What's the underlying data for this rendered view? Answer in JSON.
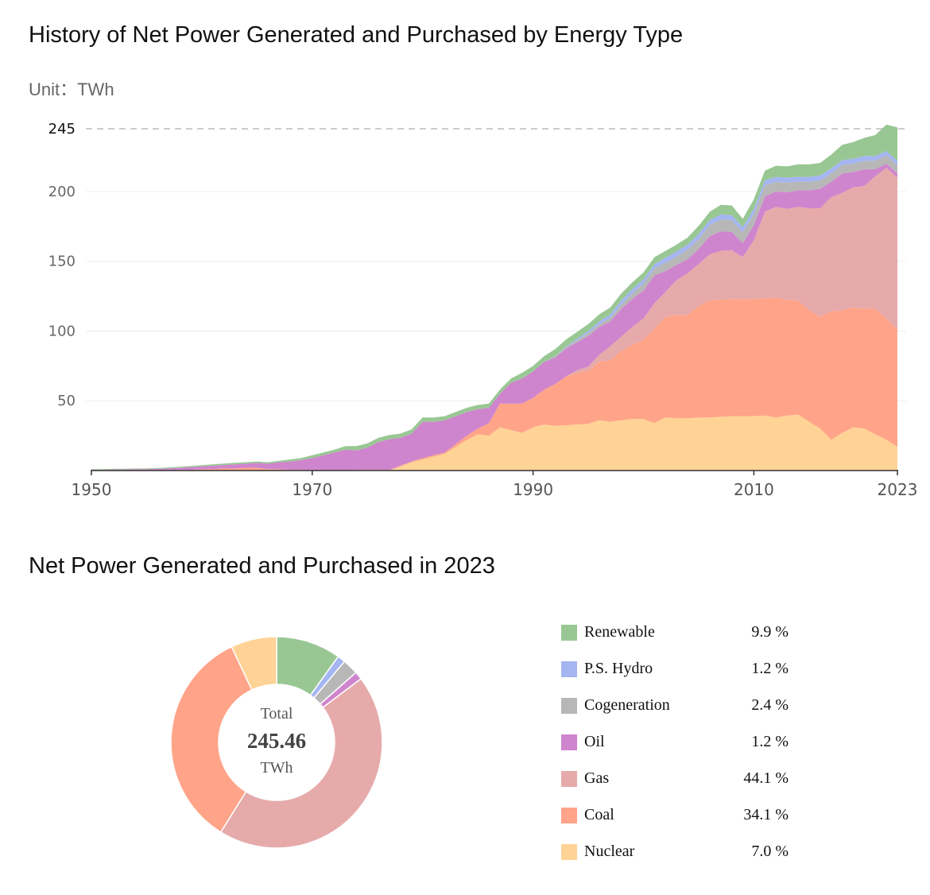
{
  "page": {
    "title": "History of Net Power Generated and Purchased by Energy Type",
    "unit_label": "Unit：TWh",
    "pie_title": "Net Power Generated and Purchased in 2023",
    "total_label": "Total",
    "total_value": "245.46",
    "total_unit": "TWh"
  },
  "chart_data": [
    {
      "type": "area",
      "stacked": true,
      "title": "History of Net Power Generated and Purchased by Energy Type",
      "ylabel": "Unit：TWh",
      "ylim": [
        0,
        245
      ],
      "y_ticks": [
        50,
        100,
        150,
        200,
        245
      ],
      "x_ticks": [
        1950,
        1970,
        1990,
        2010,
        2023
      ],
      "x": [
        1950,
        1951,
        1952,
        1953,
        1954,
        1955,
        1956,
        1957,
        1958,
        1959,
        1960,
        1961,
        1962,
        1963,
        1964,
        1965,
        1966,
        1967,
        1968,
        1969,
        1970,
        1971,
        1972,
        1973,
        1974,
        1975,
        1976,
        1977,
        1978,
        1979,
        1980,
        1981,
        1982,
        1983,
        1984,
        1985,
        1986,
        1987,
        1988,
        1989,
        1990,
        1991,
        1992,
        1993,
        1994,
        1995,
        1996,
        1997,
        1998,
        1999,
        2000,
        2001,
        2002,
        2003,
        2004,
        2005,
        2006,
        2007,
        2008,
        2009,
        2010,
        2011,
        2012,
        2013,
        2014,
        2015,
        2016,
        2017,
        2018,
        2019,
        2020,
        2021,
        2022,
        2023
      ],
      "series": [
        {
          "name": "Nuclear",
          "color": "#ffd395",
          "values": [
            0,
            0,
            0,
            0,
            0,
            0,
            0,
            0,
            0,
            0,
            0,
            0,
            0,
            0,
            0,
            0,
            0,
            0,
            0,
            0,
            0,
            0,
            0,
            0,
            0,
            0,
            0,
            0,
            3,
            6,
            8,
            10,
            12,
            17,
            22,
            26,
            25,
            31,
            29,
            27,
            31,
            33,
            32,
            32.5,
            33,
            33.5,
            36,
            35,
            36,
            37,
            37,
            34,
            38,
            37.5,
            37.5,
            38,
            38,
            38.5,
            39,
            39,
            39,
            39.5,
            38,
            39.5,
            40,
            35,
            30,
            22,
            27,
            31,
            30,
            26,
            22,
            17
          ]
        },
        {
          "name": "Coal",
          "color": "#ffa489",
          "values": [
            0,
            0,
            0,
            0,
            0,
            0,
            0,
            0,
            0.5,
            0.5,
            1,
            1,
            1.5,
            1.5,
            2,
            2,
            1,
            1,
            0.5,
            0.5,
            0,
            0,
            0,
            0,
            0.5,
            0.5,
            0.5,
            0.5,
            0.5,
            0.5,
            1,
            1,
            1,
            2,
            3,
            4,
            9,
            17,
            19,
            21,
            21,
            25,
            30,
            35,
            37,
            38,
            42,
            44,
            50,
            53,
            57,
            68,
            72,
            74,
            74,
            80,
            84,
            84,
            84,
            84,
            84,
            84,
            86,
            83,
            82,
            80,
            80,
            92,
            88,
            86,
            86,
            90,
            87,
            84
          ]
        },
        {
          "name": "Gas",
          "color": "#e6aaab",
          "values": [
            0,
            0,
            0,
            0,
            0,
            0,
            0,
            0,
            0,
            0,
            0,
            0,
            0,
            0,
            0,
            0,
            0,
            0,
            0,
            0,
            0,
            0,
            0,
            0,
            0,
            0,
            0,
            0,
            0,
            0,
            0,
            0,
            0,
            0,
            0,
            0,
            0,
            0,
            0,
            0,
            0,
            0,
            0,
            0,
            2,
            3,
            5,
            10,
            10,
            13,
            15,
            18,
            18,
            25,
            30,
            30,
            33,
            35,
            35,
            30,
            42,
            62,
            65,
            65,
            67,
            73,
            78,
            82,
            84,
            86,
            88,
            95,
            108,
            109
          ]
        },
        {
          "name": "Oil",
          "color": "#cf85cd",
          "values": [
            0.5,
            0.5,
            0.8,
            0.8,
            1,
            1,
            1.2,
            1.5,
            1.5,
            2,
            2,
            2.5,
            2.5,
            3,
            3,
            3.5,
            4,
            5,
            6,
            7,
            9,
            11,
            13,
            15,
            14,
            16,
            20,
            22,
            20,
            20,
            26,
            24,
            23,
            20,
            17,
            14,
            11,
            7,
            15,
            18,
            19,
            20,
            19,
            20,
            20,
            22,
            20,
            18,
            20,
            20,
            20,
            20,
            15,
            11,
            10,
            11,
            13,
            14,
            13,
            10,
            11,
            11,
            11,
            12,
            12,
            13,
            14,
            11,
            14,
            11,
            12,
            5,
            3,
            3
          ]
        },
        {
          "name": "Cogeneration",
          "color": "#b7b7b7",
          "values": [
            0,
            0,
            0,
            0,
            0,
            0,
            0,
            0,
            0,
            0,
            0,
            0,
            0,
            0,
            0,
            0,
            0,
            0,
            0,
            0,
            0,
            0,
            0,
            0,
            0,
            0,
            0,
            0,
            0,
            0,
            0,
            0,
            0,
            0,
            0,
            0,
            0,
            0,
            0,
            0,
            0,
            0,
            1,
            1,
            1.5,
            2,
            2,
            2.5,
            3,
            4,
            5,
            5,
            6,
            6,
            7,
            7,
            8,
            8.5,
            8.5,
            8,
            8,
            8,
            7,
            7,
            6,
            6,
            6,
            6,
            6,
            6,
            6,
            6,
            6,
            6
          ]
        },
        {
          "name": "P.S. Hydro",
          "color": "#a4b5f2",
          "values": [
            0,
            0,
            0,
            0,
            0,
            0,
            0,
            0,
            0,
            0,
            0,
            0,
            0,
            0,
            0,
            0,
            0,
            0,
            0,
            0,
            0,
            0,
            0,
            0,
            0,
            0,
            0,
            0,
            0,
            0,
            0,
            0,
            0,
            0,
            0,
            0,
            0,
            0,
            0,
            0,
            0,
            0,
            0,
            0.5,
            1,
            1.5,
            2,
            2.5,
            3,
            3,
            3,
            3,
            3.5,
            3.5,
            3.5,
            3.5,
            3.5,
            3.5,
            3.5,
            3.5,
            3.5,
            3.5,
            3.5,
            3.5,
            3.5,
            3.5,
            3.5,
            3.5,
            3.5,
            3.5,
            3.5,
            3.5,
            3,
            3
          ]
        },
        {
          "name": "Renewable",
          "color": "#99c794",
          "values": [
            0.5,
            0.5,
            0.5,
            0.5,
            0.5,
            0.6,
            0.6,
            0.7,
            0.7,
            0.8,
            0.8,
            1,
            1,
            1,
            1,
            1,
            1,
            1,
            1.5,
            1.5,
            2,
            2,
            2,
            2.5,
            3,
            3,
            3,
            3,
            3,
            3,
            3,
            3,
            3,
            3,
            3,
            3,
            3,
            3,
            3,
            4,
            4,
            4,
            5,
            5,
            5,
            5,
            5,
            5,
            5,
            5,
            5,
            5,
            5,
            5,
            5,
            6,
            6,
            7,
            7,
            6,
            7,
            7,
            8,
            8,
            9,
            9,
            9,
            10,
            11,
            12,
            13,
            15,
            19,
            24
          ]
        }
      ]
    },
    {
      "type": "pie",
      "title": "Net Power Generated and Purchased in 2023",
      "total": 245.46,
      "unit": "TWh",
      "series": [
        {
          "name": "Renewable",
          "percent": 9.9,
          "label": "9.9 %",
          "color": "#99c794"
        },
        {
          "name": "P.S. Hydro",
          "percent": 1.2,
          "label": "1.2 %",
          "color": "#a4b5f2"
        },
        {
          "name": "Cogeneration",
          "percent": 2.4,
          "label": "2.4 %",
          "color": "#b7b7b7"
        },
        {
          "name": "Oil",
          "percent": 1.2,
          "label": "1.2 %",
          "color": "#cf85cd"
        },
        {
          "name": "Gas",
          "percent": 44.1,
          "label": "44.1 %",
          "color": "#e6aaab"
        },
        {
          "name": "Coal",
          "percent": 34.1,
          "label": "34.1 %",
          "color": "#ffa489"
        },
        {
          "name": "Nuclear",
          "percent": 7.0,
          "label": "7.0 %",
          "color": "#ffd395"
        }
      ]
    }
  ]
}
